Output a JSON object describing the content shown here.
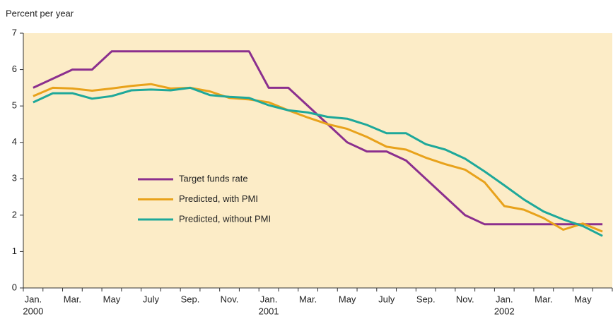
{
  "chart_data": {
    "type": "line",
    "y_axis_label": "Percent per year",
    "categories": [
      "Jan.",
      null,
      "Mar.",
      null,
      "May",
      null,
      "July",
      null,
      "Sep.",
      null,
      "Nov.",
      null,
      "Jan.",
      null,
      "Mar.",
      null,
      "May",
      null,
      "July",
      null,
      "Sep.",
      null,
      "Nov.",
      null,
      "Jan.",
      null,
      "Mar.",
      null,
      "May",
      null
    ],
    "x_year_labels": [
      "2000",
      null,
      null,
      null,
      null,
      null,
      null,
      null,
      null,
      null,
      null,
      null,
      "2001",
      null,
      null,
      null,
      null,
      null,
      null,
      null,
      null,
      null,
      null,
      null,
      "2002",
      null,
      null,
      null,
      null,
      null
    ],
    "series": [
      {
        "name": "Target funds rate",
        "color": "#8b2f8e",
        "values": [
          5.5,
          5.75,
          6.0,
          6.0,
          6.5,
          6.5,
          6.5,
          6.5,
          6.5,
          6.5,
          6.5,
          6.5,
          5.5,
          5.5,
          5.0,
          4.5,
          4.0,
          3.75,
          3.75,
          3.5,
          3.0,
          2.5,
          2.0,
          1.75,
          1.75,
          1.75,
          1.75,
          1.75,
          1.75,
          1.75
        ]
      },
      {
        "name": "Predicted, with PMI",
        "color": "#e8a21b",
        "values": [
          5.27,
          5.5,
          5.48,
          5.42,
          5.48,
          5.55,
          5.6,
          5.48,
          5.5,
          5.4,
          5.22,
          5.18,
          5.1,
          4.88,
          4.68,
          4.5,
          4.37,
          4.15,
          3.88,
          3.8,
          3.58,
          3.4,
          3.25,
          2.9,
          2.25,
          2.15,
          1.92,
          1.6,
          1.77,
          1.55
        ]
      },
      {
        "name": "Predicted, without PMI",
        "color": "#1ea89a",
        "values": [
          5.1,
          5.35,
          5.35,
          5.2,
          5.27,
          5.43,
          5.45,
          5.43,
          5.5,
          5.3,
          5.25,
          5.22,
          5.02,
          4.88,
          4.82,
          4.7,
          4.65,
          4.48,
          4.25,
          4.25,
          3.95,
          3.8,
          3.55,
          3.2,
          2.82,
          2.43,
          2.1,
          1.88,
          1.7,
          1.43
        ]
      }
    ],
    "ylim": [
      0,
      7
    ],
    "yticks": [
      0,
      1,
      2,
      3,
      4,
      5,
      6,
      7
    ],
    "background": "#fcecc7",
    "legend_position": "center-left"
  }
}
